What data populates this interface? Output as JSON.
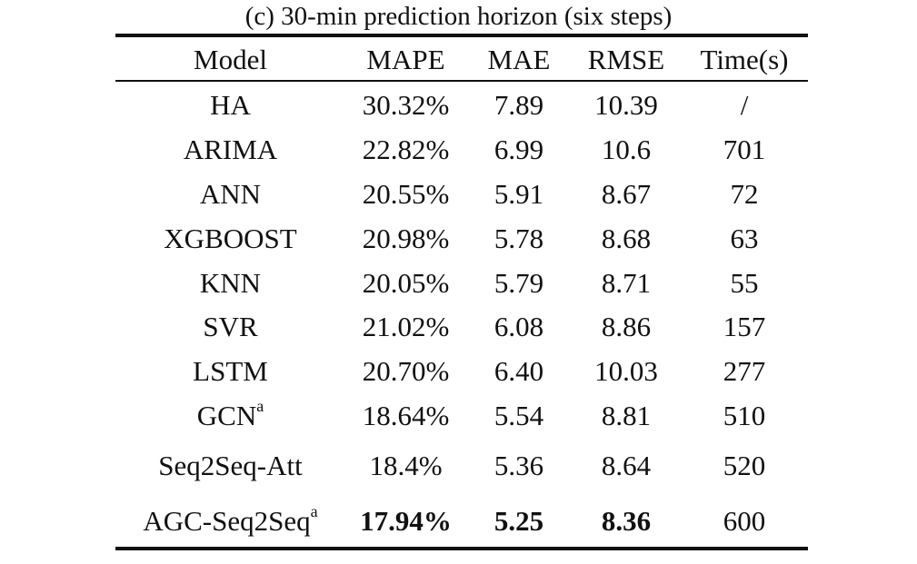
{
  "caption": "(c) 30-min prediction horizon (six steps)",
  "headers": [
    "Model",
    "MAPE",
    "MAE",
    "RMSE",
    "Time(s)"
  ],
  "rows": [
    {
      "model": "HA",
      "sup": "",
      "mape": "30.32%",
      "mae": "7.89",
      "rmse": "10.39",
      "time": "/"
    },
    {
      "model": "ARIMA",
      "sup": "",
      "mape": "22.82%",
      "mae": "6.99",
      "rmse": "10.6",
      "time": "701"
    },
    {
      "model": "ANN",
      "sup": "",
      "mape": "20.55%",
      "mae": "5.91",
      "rmse": "8.67",
      "time": "72"
    },
    {
      "model": "XGBOOST",
      "sup": "",
      "mape": "20.98%",
      "mae": "5.78",
      "rmse": "8.68",
      "time": "63"
    },
    {
      "model": "KNN",
      "sup": "",
      "mape": "20.05%",
      "mae": "5.79",
      "rmse": "8.71",
      "time": "55"
    },
    {
      "model": "SVR",
      "sup": "",
      "mape": "21.02%",
      "mae": "6.08",
      "rmse": "8.86",
      "time": "157"
    },
    {
      "model": "LSTM",
      "sup": "",
      "mape": "20.70%",
      "mae": "6.40",
      "rmse": "10.03",
      "time": "277"
    },
    {
      "model": "GCN",
      "sup": "a",
      "mape": "18.64%",
      "mae": "5.54",
      "rmse": "8.81",
      "time": "510"
    },
    {
      "model": "Seq2Seq-Att",
      "sup": "",
      "mape": "18.4%",
      "mae": "5.36",
      "rmse": "8.64",
      "time": "520"
    },
    {
      "model": "AGC-Seq2Seq",
      "sup": "a",
      "mape": "17.94%",
      "mae": "5.25",
      "rmse": "8.36",
      "time": "600"
    }
  ]
}
